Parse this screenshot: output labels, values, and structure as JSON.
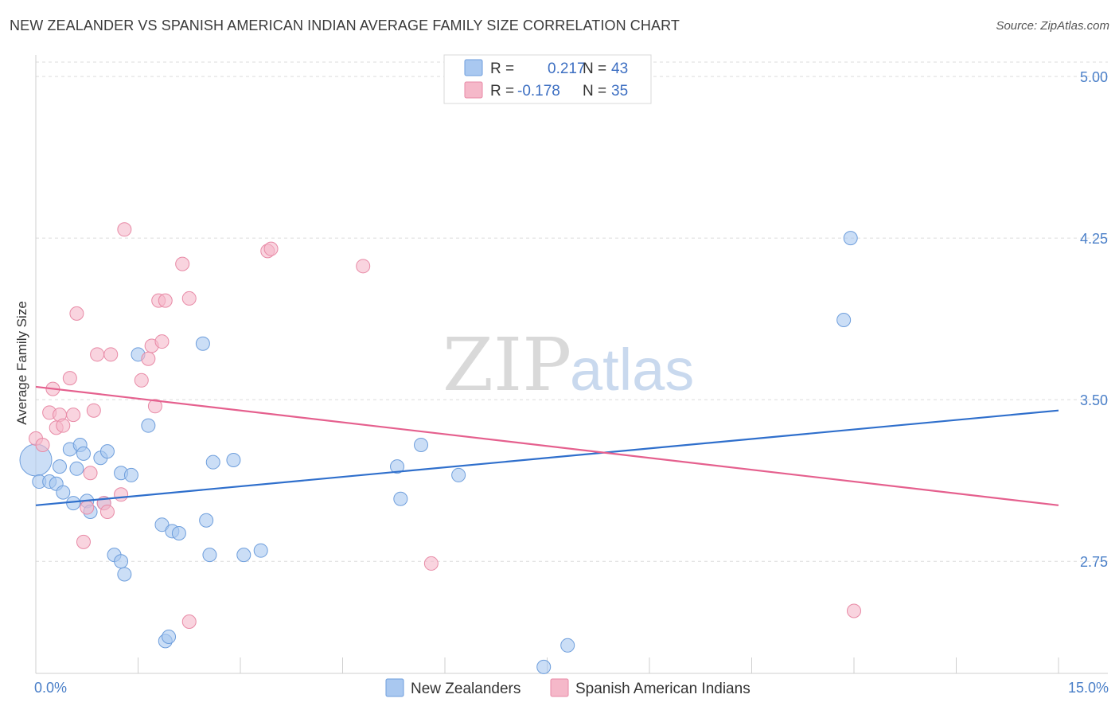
{
  "title": "NEW ZEALANDER VS SPANISH AMERICAN INDIAN AVERAGE FAMILY SIZE CORRELATION CHART",
  "source": "Source: ZipAtlas.com",
  "watermark": {
    "zip": "ZIP",
    "atlas": "atlas"
  },
  "legend": {
    "rows": [
      {
        "r_label": "R =",
        "r_value": "0.217",
        "n_label": "N =",
        "n_value": "43",
        "color": "#a9c8f0"
      },
      {
        "r_label": "R =",
        "r_value": "-0.178",
        "n_label": "N =",
        "n_value": "35",
        "color": "#f5b8c9"
      }
    ]
  },
  "bottom_legend": [
    "New Zealanders",
    "Spanish American Indians"
  ],
  "chart_data": {
    "type": "scatter",
    "ylabel": "Average Family Size",
    "xlim": [
      0,
      15
    ],
    "ylim": [
      2.23,
      5.1
    ],
    "yticks": [
      2.75,
      3.5,
      4.25,
      5.0
    ],
    "ytick_labels": [
      "2.75",
      "3.50",
      "4.25",
      "5.00"
    ],
    "xtick_labels": [
      "0.0%",
      "15.0%"
    ],
    "grid": true,
    "series": [
      {
        "name": "New Zealanders",
        "color": "#a9c8f0",
        "stroke": "#6e9edc",
        "line_color": "#2f6fcc",
        "trend": [
          [
            0,
            3.01
          ],
          [
            15,
            3.45
          ]
        ],
        "points": [
          [
            0.0,
            3.22
          ],
          [
            0.05,
            3.12
          ],
          [
            0.2,
            3.12
          ],
          [
            0.3,
            3.11
          ],
          [
            0.35,
            3.19
          ],
          [
            0.4,
            3.07
          ],
          [
            0.5,
            3.27
          ],
          [
            0.55,
            3.02
          ],
          [
            0.6,
            3.18
          ],
          [
            0.65,
            3.29
          ],
          [
            0.7,
            3.25
          ],
          [
            0.75,
            3.03
          ],
          [
            0.8,
            2.98
          ],
          [
            0.95,
            3.23
          ],
          [
            1.0,
            3.02
          ],
          [
            1.05,
            3.26
          ],
          [
            1.15,
            2.78
          ],
          [
            1.25,
            3.16
          ],
          [
            1.3,
            2.69
          ],
          [
            1.4,
            3.15
          ],
          [
            1.5,
            3.71
          ],
          [
            1.65,
            3.38
          ],
          [
            1.85,
            2.92
          ],
          [
            1.9,
            2.38
          ],
          [
            1.95,
            2.4
          ],
          [
            2.0,
            2.89
          ],
          [
            2.1,
            2.88
          ],
          [
            2.45,
            3.76
          ],
          [
            2.5,
            2.94
          ],
          [
            2.55,
            2.78
          ],
          [
            2.6,
            3.21
          ],
          [
            2.9,
            3.22
          ],
          [
            3.05,
            2.78
          ],
          [
            3.3,
            2.8
          ],
          [
            5.3,
            3.19
          ],
          [
            5.35,
            3.04
          ],
          [
            5.65,
            3.29
          ],
          [
            6.2,
            3.15
          ],
          [
            7.8,
            2.36
          ],
          [
            7.45,
            2.26
          ],
          [
            11.85,
            3.87
          ],
          [
            11.95,
            4.25
          ],
          [
            1.25,
            2.75
          ]
        ]
      },
      {
        "name": "Spanish American Indians",
        "color": "#f5b8c9",
        "stroke": "#e88aa6",
        "line_color": "#e5608e",
        "trend": [
          [
            0,
            3.56
          ],
          [
            15,
            3.01
          ]
        ],
        "points": [
          [
            0.0,
            3.32
          ],
          [
            0.1,
            3.29
          ],
          [
            0.2,
            3.44
          ],
          [
            0.25,
            3.55
          ],
          [
            0.3,
            3.37
          ],
          [
            0.35,
            3.43
          ],
          [
            0.4,
            3.38
          ],
          [
            0.5,
            3.6
          ],
          [
            0.55,
            3.43
          ],
          [
            0.6,
            3.9
          ],
          [
            0.7,
            2.84
          ],
          [
            0.75,
            3.0
          ],
          [
            0.8,
            3.16
          ],
          [
            0.85,
            3.45
          ],
          [
            0.9,
            3.71
          ],
          [
            1.0,
            3.02
          ],
          [
            1.05,
            2.98
          ],
          [
            1.1,
            3.71
          ],
          [
            1.25,
            3.06
          ],
          [
            1.3,
            4.29
          ],
          [
            1.55,
            3.59
          ],
          [
            1.65,
            3.69
          ],
          [
            1.7,
            3.75
          ],
          [
            1.75,
            3.47
          ],
          [
            1.8,
            3.96
          ],
          [
            1.85,
            3.77
          ],
          [
            1.9,
            3.96
          ],
          [
            2.15,
            4.13
          ],
          [
            2.25,
            3.97
          ],
          [
            2.25,
            2.47
          ],
          [
            3.4,
            4.19
          ],
          [
            3.45,
            4.2
          ],
          [
            4.8,
            4.12
          ],
          [
            5.8,
            2.74
          ],
          [
            12.0,
            2.52
          ]
        ]
      }
    ]
  }
}
